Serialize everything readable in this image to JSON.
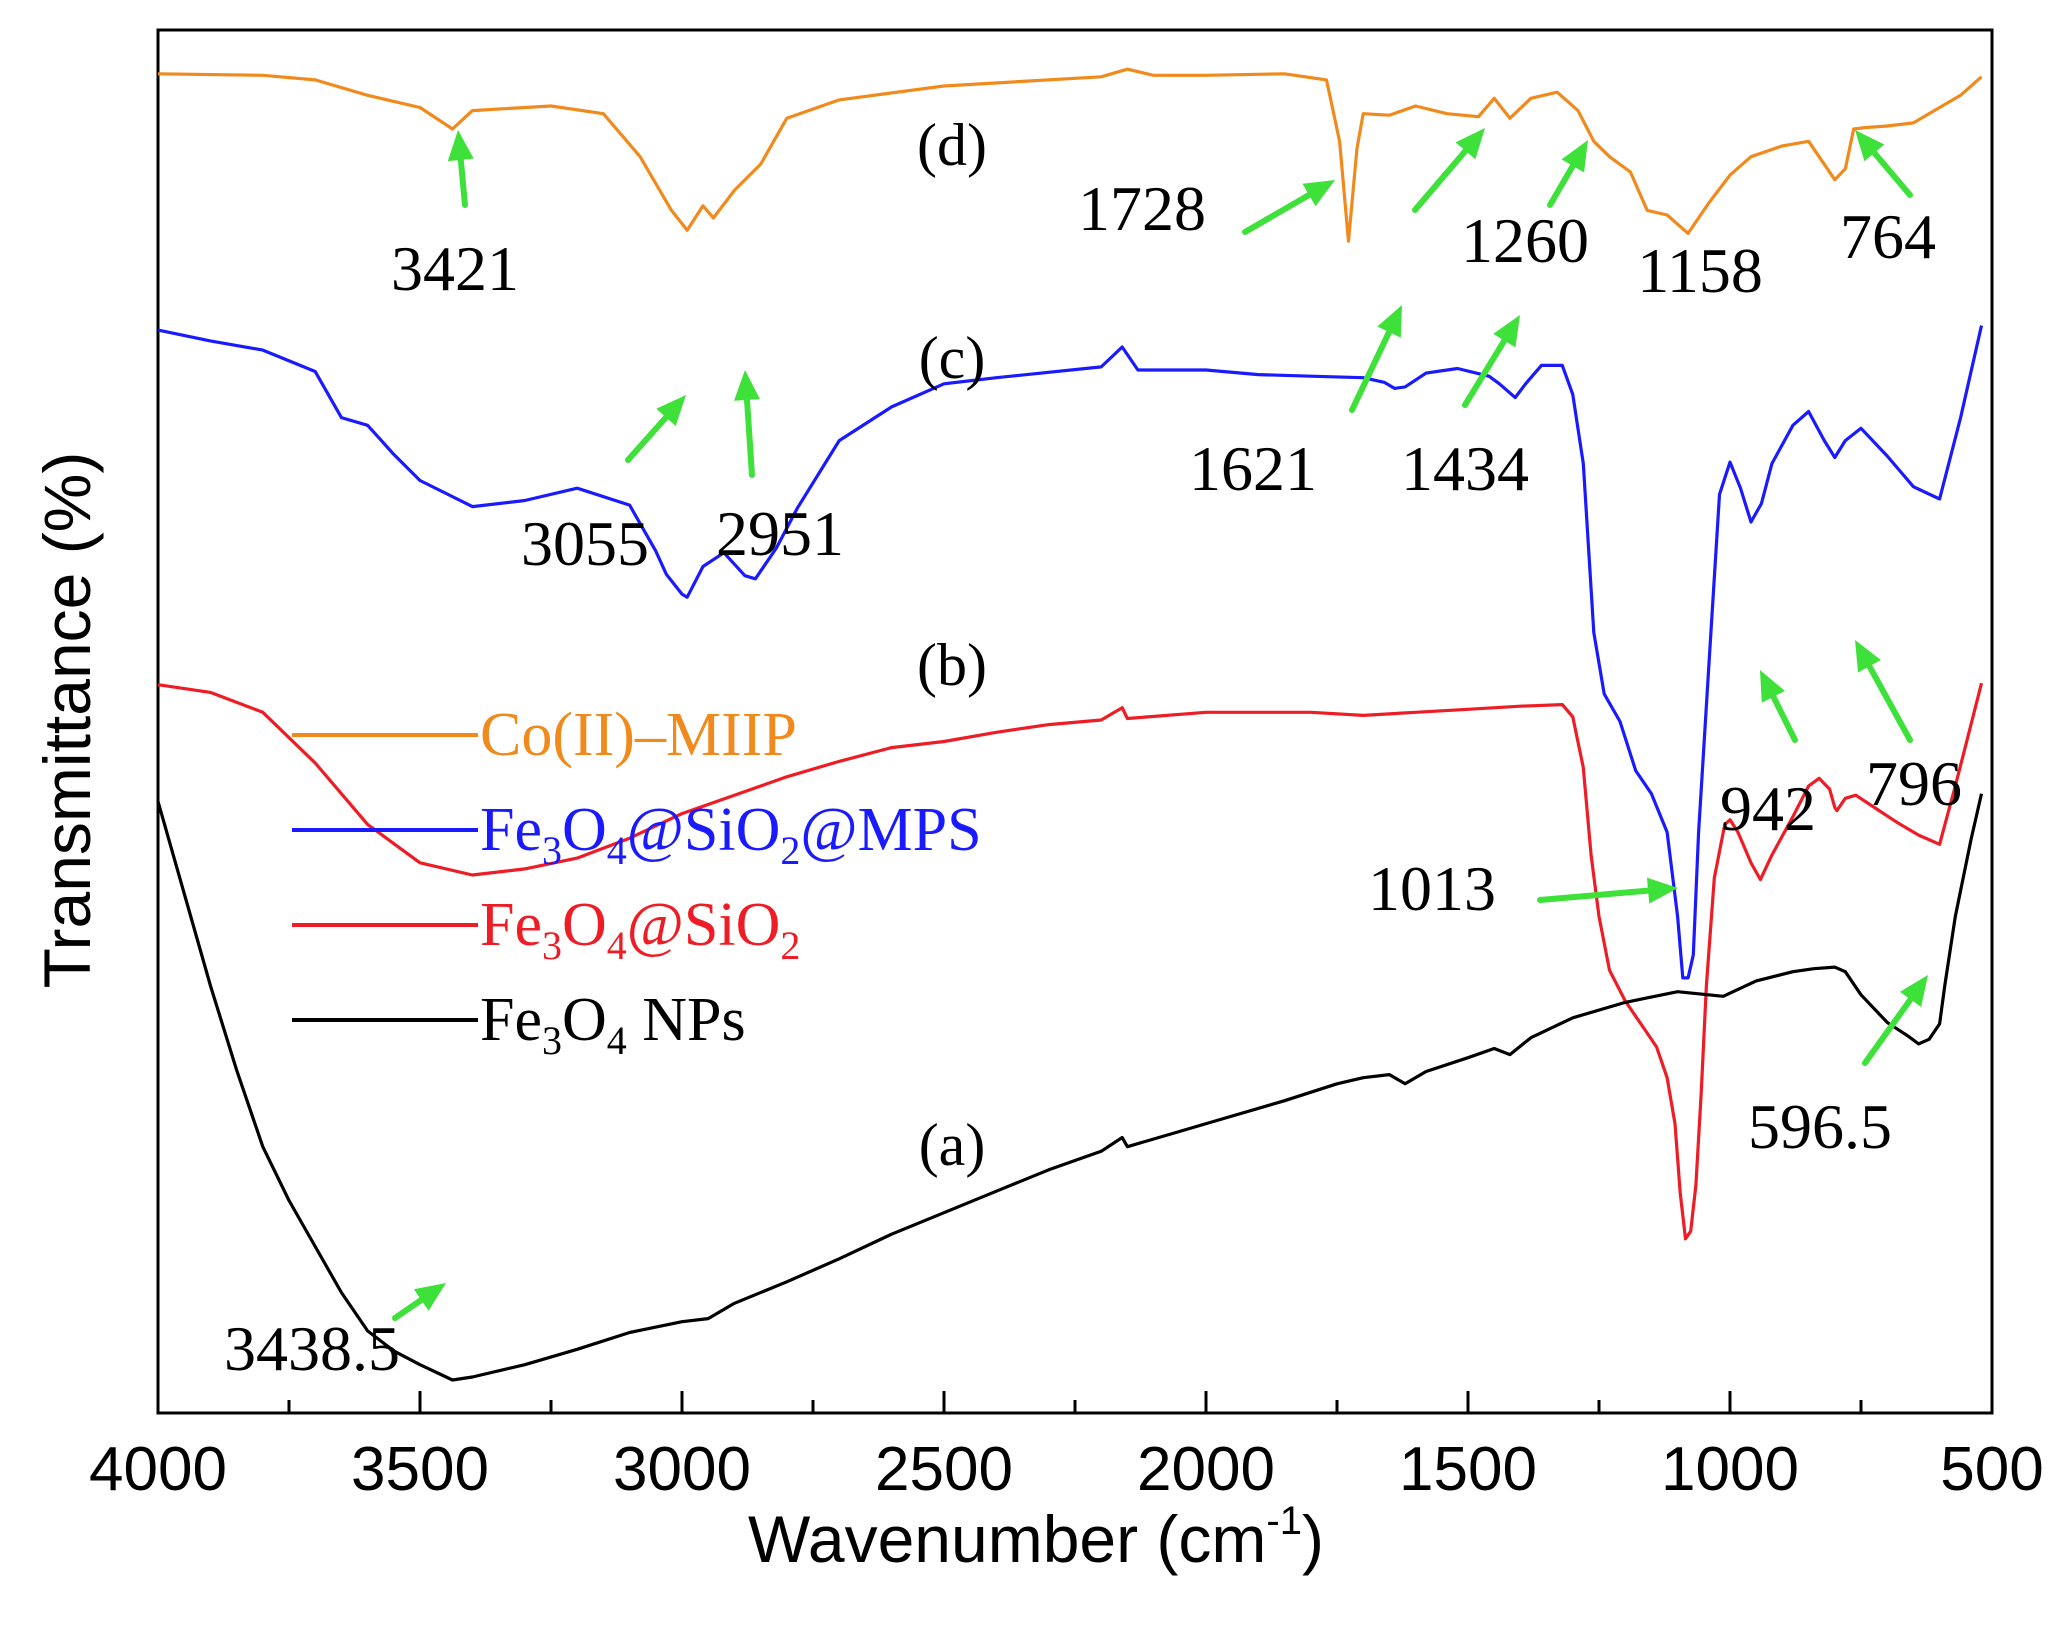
{
  "chart_data": {
    "type": "line",
    "title": "",
    "xlabel": "Wavenumber (cm",
    "xlabel_sup": "-1",
    "xlabel_close": ")",
    "ylabel": "Transmittance (%)",
    "xlim": [
      4000,
      500
    ],
    "xticks": [
      "4000",
      "3500",
      "3000",
      "2500",
      "2000",
      "1500",
      "1000",
      "500"
    ],
    "legend": [
      {
        "parts": [
          {
            "t": "Co(II)–MIIP"
          }
        ],
        "color": "#f08a1c"
      },
      {
        "parts": [
          {
            "t": "Fe"
          },
          {
            "t": "3",
            "sub": true
          },
          {
            "t": "O"
          },
          {
            "t": "4",
            "sub": true
          },
          {
            "t": "@SiO"
          },
          {
            "t": "2",
            "sub": true
          },
          {
            "t": "@MPS"
          }
        ],
        "color": "#1a1aff"
      },
      {
        "parts": [
          {
            "t": "Fe"
          },
          {
            "t": "3",
            "sub": true
          },
          {
            "t": "O"
          },
          {
            "t": "4",
            "sub": true
          },
          {
            "t": "@SiO"
          },
          {
            "t": "2",
            "sub": true
          }
        ],
        "color": "#ee1c24"
      },
      {
        "parts": [
          {
            "t": "Fe"
          },
          {
            "t": "3",
            "sub": true
          },
          {
            "t": "O"
          },
          {
            "t": "4",
            "sub": true
          },
          {
            "t": " NPs"
          }
        ],
        "color": "#000000"
      }
    ],
    "series": [
      {
        "name": "Co(II)-MIIP",
        "label": "(d)",
        "color": "#f08a1c",
        "points": [
          [
            4000,
            86.4
          ],
          [
            3800,
            86.3
          ],
          [
            3700,
            86.0
          ],
          [
            3600,
            85.0
          ],
          [
            3500,
            84.2
          ],
          [
            3438,
            82.8
          ],
          [
            3400,
            84.0
          ],
          [
            3250,
            84.3
          ],
          [
            3150,
            83.8
          ],
          [
            3080,
            81.0
          ],
          [
            3020,
            77.5
          ],
          [
            2990,
            76.2
          ],
          [
            2960,
            77.8
          ],
          [
            2940,
            77.0
          ],
          [
            2900,
            78.8
          ],
          [
            2850,
            80.5
          ],
          [
            2800,
            83.5
          ],
          [
            2700,
            84.7
          ],
          [
            2500,
            85.6
          ],
          [
            2200,
            86.2
          ],
          [
            2150,
            86.7
          ],
          [
            2100,
            86.3
          ],
          [
            2000,
            86.3
          ],
          [
            1850,
            86.4
          ],
          [
            1770,
            86.0
          ],
          [
            1745,
            82.0
          ],
          [
            1728,
            75.5
          ],
          [
            1712,
            81.5
          ],
          [
            1700,
            83.8
          ],
          [
            1650,
            83.7
          ],
          [
            1600,
            84.3
          ],
          [
            1540,
            83.8
          ],
          [
            1480,
            83.6
          ],
          [
            1450,
            84.8
          ],
          [
            1420,
            83.5
          ],
          [
            1380,
            84.8
          ],
          [
            1330,
            85.2
          ],
          [
            1290,
            84.0
          ],
          [
            1260,
            82.0
          ],
          [
            1230,
            81.0
          ],
          [
            1190,
            80.0
          ],
          [
            1158,
            77.5
          ],
          [
            1120,
            77.2
          ],
          [
            1080,
            76.0
          ],
          [
            1040,
            78.0
          ],
          [
            1000,
            79.8
          ],
          [
            960,
            81.0
          ],
          [
            900,
            81.7
          ],
          [
            850,
            82.0
          ],
          [
            800,
            79.5
          ],
          [
            780,
            80.2
          ],
          [
            764,
            82.8
          ],
          [
            740,
            82.9
          ],
          [
            700,
            83.0
          ],
          [
            650,
            83.2
          ],
          [
            600,
            84.2
          ],
          [
            560,
            85.0
          ],
          [
            520,
            86.2
          ]
        ]
      },
      {
        "name": "Fe3O4@SiO2@MPS",
        "label": "(c)",
        "color": "#1a1aff",
        "points": [
          [
            4000,
            69.7
          ],
          [
            3900,
            69.0
          ],
          [
            3800,
            68.4
          ],
          [
            3700,
            67.0
          ],
          [
            3650,
            64.0
          ],
          [
            3600,
            63.5
          ],
          [
            3550,
            61.6
          ],
          [
            3500,
            59.9
          ],
          [
            3400,
            58.2
          ],
          [
            3300,
            58.6
          ],
          [
            3200,
            59.4
          ],
          [
            3100,
            58.3
          ],
          [
            3050,
            55.3
          ],
          [
            3030,
            53.8
          ],
          [
            3000,
            52.5
          ],
          [
            2990,
            52.3
          ],
          [
            2960,
            54.3
          ],
          [
            2920,
            55.2
          ],
          [
            2880,
            53.7
          ],
          [
            2860,
            53.5
          ],
          [
            2820,
            55.5
          ],
          [
            2780,
            58.1
          ],
          [
            2700,
            62.5
          ],
          [
            2600,
            64.7
          ],
          [
            2500,
            66.2
          ],
          [
            2400,
            66.6
          ],
          [
            2200,
            67.3
          ],
          [
            2160,
            68.6
          ],
          [
            2130,
            67.1
          ],
          [
            2000,
            67.1
          ],
          [
            1900,
            66.8
          ],
          [
            1800,
            66.7
          ],
          [
            1700,
            66.6
          ],
          [
            1660,
            66.3
          ],
          [
            1640,
            65.9
          ],
          [
            1620,
            66.0
          ],
          [
            1580,
            66.9
          ],
          [
            1520,
            67.2
          ],
          [
            1460,
            66.7
          ],
          [
            1440,
            66.2
          ],
          [
            1410,
            65.3
          ],
          [
            1390,
            66.2
          ],
          [
            1360,
            67.4
          ],
          [
            1320,
            67.4
          ],
          [
            1300,
            65.5
          ],
          [
            1280,
            61.0
          ],
          [
            1260,
            50.0
          ],
          [
            1240,
            46.0
          ],
          [
            1210,
            44.2
          ],
          [
            1180,
            41.0
          ],
          [
            1150,
            39.5
          ],
          [
            1120,
            37.0
          ],
          [
            1100,
            31.5
          ],
          [
            1090,
            27.5
          ],
          [
            1080,
            27.5
          ],
          [
            1070,
            29.0
          ],
          [
            1060,
            37.0
          ],
          [
            1040,
            48.0
          ],
          [
            1020,
            59.0
          ],
          [
            1000,
            61.1
          ],
          [
            980,
            59.4
          ],
          [
            960,
            57.2
          ],
          [
            940,
            58.4
          ],
          [
            920,
            61.0
          ],
          [
            880,
            63.5
          ],
          [
            850,
            64.4
          ],
          [
            820,
            62.5
          ],
          [
            800,
            61.4
          ],
          [
            780,
            62.5
          ],
          [
            750,
            63.3
          ],
          [
            700,
            61.5
          ],
          [
            650,
            59.5
          ],
          [
            600,
            58.7
          ],
          [
            560,
            64.0
          ],
          [
            520,
            70.0
          ]
        ]
      },
      {
        "name": "Fe3O4@SiO2",
        "label": "(b)",
        "color": "#ee1c24",
        "points": [
          [
            4000,
            46.6
          ],
          [
            3900,
            46.1
          ],
          [
            3800,
            44.8
          ],
          [
            3700,
            41.5
          ],
          [
            3600,
            37.5
          ],
          [
            3500,
            35.0
          ],
          [
            3400,
            34.2
          ],
          [
            3300,
            34.6
          ],
          [
            3200,
            35.3
          ],
          [
            3100,
            36.6
          ],
          [
            3000,
            38.2
          ],
          [
            2900,
            39.4
          ],
          [
            2800,
            40.6
          ],
          [
            2700,
            41.6
          ],
          [
            2600,
            42.5
          ],
          [
            2500,
            42.9
          ],
          [
            2400,
            43.5
          ],
          [
            2300,
            44.0
          ],
          [
            2200,
            44.3
          ],
          [
            2160,
            45.1
          ],
          [
            2150,
            44.4
          ],
          [
            2000,
            44.8
          ],
          [
            1900,
            44.8
          ],
          [
            1800,
            44.8
          ],
          [
            1700,
            44.6
          ],
          [
            1600,
            44.8
          ],
          [
            1500,
            45.0
          ],
          [
            1400,
            45.2
          ],
          [
            1320,
            45.3
          ],
          [
            1300,
            44.5
          ],
          [
            1280,
            41.2
          ],
          [
            1265,
            35.5
          ],
          [
            1250,
            31.5
          ],
          [
            1230,
            28.0
          ],
          [
            1200,
            26.0
          ],
          [
            1180,
            25.0
          ],
          [
            1160,
            24.0
          ],
          [
            1140,
            23.0
          ],
          [
            1120,
            21.0
          ],
          [
            1105,
            18.0
          ],
          [
            1095,
            13.5
          ],
          [
            1085,
            10.5
          ],
          [
            1075,
            11.0
          ],
          [
            1065,
            14.0
          ],
          [
            1055,
            20.0
          ],
          [
            1045,
            27.0
          ],
          [
            1030,
            34.0
          ],
          [
            1010,
            37.5
          ],
          [
            1000,
            37.8
          ],
          [
            985,
            37.0
          ],
          [
            960,
            35.0
          ],
          [
            942,
            33.9
          ],
          [
            920,
            35.5
          ],
          [
            880,
            38.0
          ],
          [
            850,
            40.0
          ],
          [
            830,
            40.5
          ],
          [
            810,
            39.8
          ],
          [
            800,
            38.6
          ],
          [
            796,
            38.4
          ],
          [
            780,
            39.2
          ],
          [
            760,
            39.4
          ],
          [
            720,
            38.5
          ],
          [
            680,
            37.6
          ],
          [
            640,
            36.8
          ],
          [
            600,
            36.2
          ],
          [
            570,
            40.0
          ],
          [
            540,
            44.0
          ],
          [
            520,
            46.7
          ]
        ]
      },
      {
        "name": "Fe3O4 NPs",
        "label": "(a)",
        "color": "#000000",
        "points": [
          [
            4000,
            39.0
          ],
          [
            3950,
            33.0
          ],
          [
            3900,
            27.0
          ],
          [
            3850,
            21.5
          ],
          [
            3800,
            16.5
          ],
          [
            3750,
            13.0
          ],
          [
            3700,
            10.0
          ],
          [
            3650,
            7.0
          ],
          [
            3600,
            4.5
          ],
          [
            3550,
            3.2
          ],
          [
            3500,
            2.3
          ],
          [
            3438,
            1.3
          ],
          [
            3400,
            1.5
          ],
          [
            3300,
            2.3
          ],
          [
            3200,
            3.3
          ],
          [
            3100,
            4.4
          ],
          [
            3000,
            5.1
          ],
          [
            2950,
            5.3
          ],
          [
            2900,
            6.3
          ],
          [
            2800,
            7.7
          ],
          [
            2700,
            9.2
          ],
          [
            2600,
            10.8
          ],
          [
            2500,
            12.2
          ],
          [
            2400,
            13.6
          ],
          [
            2300,
            15.0
          ],
          [
            2200,
            16.2
          ],
          [
            2160,
            17.1
          ],
          [
            2150,
            16.5
          ],
          [
            2050,
            17.5
          ],
          [
            1950,
            18.5
          ],
          [
            1850,
            19.5
          ],
          [
            1750,
            20.6
          ],
          [
            1700,
            21.0
          ],
          [
            1650,
            21.2
          ],
          [
            1620,
            20.6
          ],
          [
            1580,
            21.4
          ],
          [
            1500,
            22.3
          ],
          [
            1450,
            22.9
          ],
          [
            1420,
            22.5
          ],
          [
            1380,
            23.6
          ],
          [
            1300,
            24.9
          ],
          [
            1200,
            25.9
          ],
          [
            1100,
            26.6
          ],
          [
            1013,
            26.3
          ],
          [
            950,
            27.3
          ],
          [
            880,
            27.9
          ],
          [
            840,
            28.1
          ],
          [
            800,
            28.2
          ],
          [
            780,
            27.9
          ],
          [
            750,
            26.4
          ],
          [
            700,
            24.6
          ],
          [
            660,
            23.7
          ],
          [
            640,
            23.2
          ],
          [
            620,
            23.5
          ],
          [
            600,
            24.5
          ],
          [
            590,
            27.0
          ],
          [
            570,
            31.5
          ],
          [
            540,
            36.5
          ],
          [
            520,
            39.5
          ]
        ]
      }
    ],
    "annotations": [
      {
        "text": "3421",
        "x": 3421
      },
      {
        "text": "1728",
        "x": 1728
      },
      {
        "text": "1260",
        "x": 1260
      },
      {
        "text": "1158",
        "x": 1158
      },
      {
        "text": "764",
        "x": 764
      },
      {
        "text": "3055",
        "x": 3055
      },
      {
        "text": "2951",
        "x": 2951
      },
      {
        "text": "1621",
        "x": 1621
      },
      {
        "text": "1434",
        "x": 1434
      },
      {
        "text": "942",
        "x": 942
      },
      {
        "text": "796",
        "x": 796
      },
      {
        "text": "1013",
        "x": 1013
      },
      {
        "text": "596.5",
        "x": 596.5
      },
      {
        "text": "3438.5",
        "x": 3438.5
      }
    ],
    "arrow_color": "#3ee03a"
  }
}
